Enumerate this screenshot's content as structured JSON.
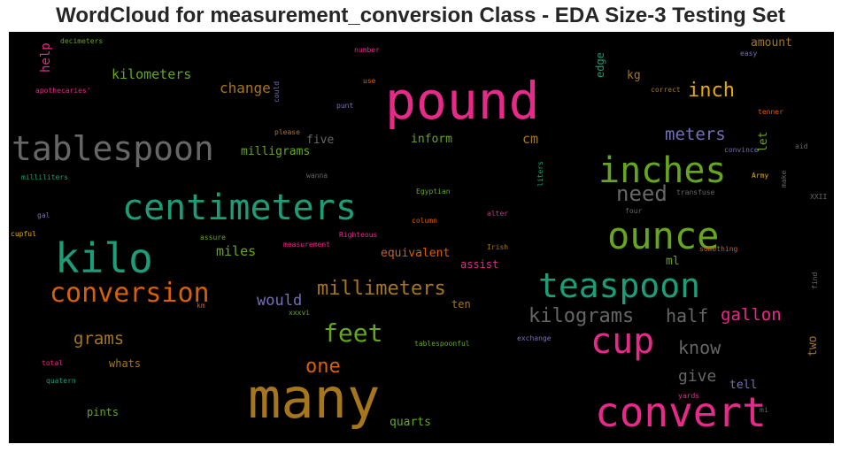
{
  "title": "WordCloud for measurement_conversion Class - EDA Size-3 Testing Set",
  "chart_data": {
    "type": "wordcloud",
    "title": "WordCloud for measurement_conversion Class - EDA Size-3 Testing Set",
    "background": "#000000",
    "palette": [
      "#1b9e77",
      "#d95f02",
      "#7570b3",
      "#e7298a",
      "#66a61e",
      "#e6ab02",
      "#a6761d",
      "#666666"
    ],
    "words": [
      {
        "text": "many",
        "size": 62,
        "color": "#a6761d"
      },
      {
        "text": "pound",
        "size": 58,
        "color": "#e7298a"
      },
      {
        "text": "convert",
        "size": 46,
        "color": "#e7298a"
      },
      {
        "text": "kilo",
        "size": 46,
        "color": "#1b9e77"
      },
      {
        "text": "ounce",
        "size": 42,
        "color": "#66a61e"
      },
      {
        "text": "centimeters",
        "size": 40,
        "color": "#1b9e77"
      },
      {
        "text": "inches",
        "size": 40,
        "color": "#66a61e"
      },
      {
        "text": "cup",
        "size": 40,
        "color": "#e7298a"
      },
      {
        "text": "tablespoon",
        "size": 38,
        "color": "#666666"
      },
      {
        "text": "teaspoon",
        "size": 38,
        "color": "#1b9e77"
      },
      {
        "text": "conversion",
        "size": 30,
        "color": "#d95f02"
      },
      {
        "text": "feet",
        "size": 28,
        "color": "#66a61e"
      },
      {
        "text": "need",
        "size": 24,
        "color": "#666666"
      },
      {
        "text": "millimeters",
        "size": 22,
        "color": "#a6761d"
      },
      {
        "text": "kilograms",
        "size": 22,
        "color": "#666666"
      },
      {
        "text": "inch",
        "size": 22,
        "color": "#e6ab02"
      },
      {
        "text": "one",
        "size": 22,
        "color": "#d95f02"
      },
      {
        "text": "know",
        "size": 20,
        "color": "#666666"
      },
      {
        "text": "half",
        "size": 20,
        "color": "#666666"
      },
      {
        "text": "meters",
        "size": 19,
        "color": "#7570b3"
      },
      {
        "text": "gallon",
        "size": 19,
        "color": "#e7298a"
      },
      {
        "text": "grams",
        "size": 19,
        "color": "#a6761d"
      },
      {
        "text": "give",
        "size": 18,
        "color": "#666666"
      },
      {
        "text": "would",
        "size": 17,
        "color": "#7570b3"
      },
      {
        "text": "change",
        "size": 16,
        "color": "#a6761d"
      },
      {
        "text": "kilometers",
        "size": 15,
        "color": "#66a61e"
      },
      {
        "text": "miles",
        "size": 15,
        "color": "#66a61e"
      },
      {
        "text": "cm",
        "size": 15,
        "color": "#a6761d"
      },
      {
        "text": "help",
        "size": 14,
        "color": "#e7298a"
      },
      {
        "text": "milligrams",
        "size": 13,
        "color": "#66a61e"
      },
      {
        "text": "equivalent",
        "size": 13,
        "color": "#d95f02"
      },
      {
        "text": "let",
        "size": 13,
        "color": "#66a61e"
      },
      {
        "text": "two",
        "size": 13,
        "color": "#a6761d"
      },
      {
        "text": "tell",
        "size": 13,
        "color": "#7570b3"
      },
      {
        "text": "five",
        "size": 13,
        "color": "#666666"
      },
      {
        "text": "inform",
        "size": 13,
        "color": "#66a61e"
      },
      {
        "text": "quarts",
        "size": 13,
        "color": "#66a61e"
      },
      {
        "text": "ml",
        "size": 13,
        "color": "#66a61e"
      },
      {
        "text": "amount",
        "size": 13,
        "color": "#a6761d"
      },
      {
        "text": "kg",
        "size": 13,
        "color": "#a6761d"
      },
      {
        "text": "assist",
        "size": 12,
        "color": "#e7298a"
      },
      {
        "text": "pints",
        "size": 12,
        "color": "#66a61e"
      },
      {
        "text": "whats",
        "size": 12,
        "color": "#a6761d"
      },
      {
        "text": "ten",
        "size": 12,
        "color": "#a6761d"
      },
      {
        "text": "edge",
        "size": 12,
        "color": "#1b9e77"
      },
      {
        "text": "decimeters",
        "size": 8,
        "color": "#66a61e"
      },
      {
        "text": "apothecaries'",
        "size": 8,
        "color": "#e7298a"
      },
      {
        "text": "milliliters",
        "size": 8,
        "color": "#1b9e77"
      },
      {
        "text": "gal",
        "size": 8,
        "color": "#7570b3"
      },
      {
        "text": "cupful",
        "size": 8,
        "color": "#e6ab02"
      },
      {
        "text": "number",
        "size": 8,
        "color": "#e7298a"
      },
      {
        "text": "use",
        "size": 8,
        "color": "#d95f02"
      },
      {
        "text": "punt",
        "size": 8,
        "color": "#7570b3"
      },
      {
        "text": "please",
        "size": 8,
        "color": "#a6761d"
      },
      {
        "text": "could",
        "size": 8,
        "color": "#7570b3"
      },
      {
        "text": "wanna",
        "size": 8,
        "color": "#666666"
      },
      {
        "text": "Egyptian",
        "size": 8,
        "color": "#66a61e"
      },
      {
        "text": "column",
        "size": 8,
        "color": "#d95f02"
      },
      {
        "text": "alter",
        "size": 8,
        "color": "#e7298a"
      },
      {
        "text": "Righteous",
        "size": 8,
        "color": "#e7298a"
      },
      {
        "text": "measurement",
        "size": 8,
        "color": "#e7298a"
      },
      {
        "text": "assure",
        "size": 8,
        "color": "#66a61e"
      },
      {
        "text": "Irish",
        "size": 8,
        "color": "#a6761d"
      },
      {
        "text": "km",
        "size": 8,
        "color": "#d95f02"
      },
      {
        "text": "xxxvi",
        "size": 8,
        "color": "#66a61e"
      },
      {
        "text": "tablespoonful",
        "size": 8,
        "color": "#66a61e"
      },
      {
        "text": "total",
        "size": 8,
        "color": "#e7298a"
      },
      {
        "text": "quatern",
        "size": 8,
        "color": "#1b9e77"
      },
      {
        "text": "exchange",
        "size": 8,
        "color": "#7570b3"
      },
      {
        "text": "yards",
        "size": 8,
        "color": "#e7298a"
      },
      {
        "text": "mi",
        "size": 8,
        "color": "#666666"
      },
      {
        "text": "something",
        "size": 8,
        "color": "#d95f02"
      },
      {
        "text": "liters",
        "size": 8,
        "color": "#1b9e77"
      },
      {
        "text": "four",
        "size": 8,
        "color": "#666666"
      },
      {
        "text": "transfuse",
        "size": 8,
        "color": "#666666"
      },
      {
        "text": "make",
        "size": 8,
        "color": "#666666"
      },
      {
        "text": "Army",
        "size": 8,
        "color": "#e6ab02"
      },
      {
        "text": "XXII",
        "size": 8,
        "color": "#666666"
      },
      {
        "text": "aid",
        "size": 8,
        "color": "#666666"
      },
      {
        "text": "convince",
        "size": 8,
        "color": "#7570b3"
      },
      {
        "text": "tenner",
        "size": 8,
        "color": "#d95f02"
      },
      {
        "text": "correct",
        "size": 8,
        "color": "#a6761d"
      },
      {
        "text": "easy",
        "size": 8,
        "color": "#7570b3"
      },
      {
        "text": "find",
        "size": 8,
        "color": "#666666"
      }
    ]
  }
}
